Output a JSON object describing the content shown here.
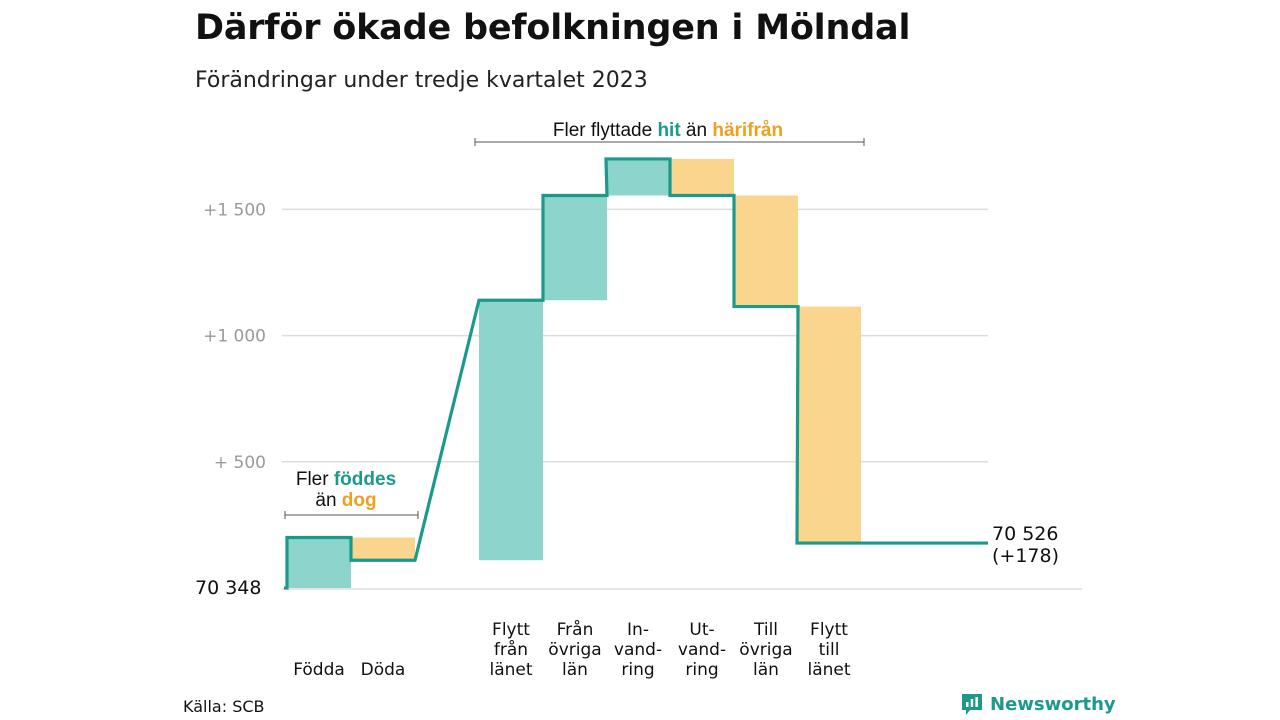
{
  "title": "Därför ökade befolkningen i Mölndal",
  "subtitle": "Förändringar under tredje kvartalet 2023",
  "source": "Källa: SCB",
  "brand": "Newsworthy",
  "colors": {
    "increase_fill": "#8dd5cc",
    "decrease_fill": "#f9d58e",
    "line": "#1b9a8c",
    "grid": "#dddddd",
    "positive_text": "#1b9a8c",
    "negative_text": "#f0a020"
  },
  "chart_data": {
    "type": "waterfall",
    "start_value_label": "70  348",
    "y_ticks": [
      {
        "value": 500,
        "label": "+  500"
      },
      {
        "value": 1000,
        "label": "+1  000"
      },
      {
        "value": 1500,
        "label": "+1  500"
      }
    ],
    "ylim": [
      0,
      1700
    ],
    "grid": true,
    "steps": [
      {
        "label": [
          "Födda"
        ],
        "change": 200
      },
      {
        "label": [
          "Döda"
        ],
        "change": -90
      },
      {
        "label": [
          "Flytt",
          "från",
          "länet"
        ],
        "change": 1030
      },
      {
        "label": [
          "Från",
          "övriga",
          "län"
        ],
        "change": 415
      },
      {
        "label": [
          "In-",
          "vand-",
          "ring"
        ],
        "change": 145
      },
      {
        "label": [
          "Ut-",
          "vand-",
          "ring"
        ],
        "change": -145
      },
      {
        "label": [
          "Till",
          "övriga",
          "län"
        ],
        "change": -440
      },
      {
        "label": [
          "Flytt",
          "till",
          "länet"
        ],
        "change": -937
      }
    ],
    "end_value_label": "70 526",
    "end_change_label": "(+178)",
    "annotations": {
      "births": {
        "line1_prefix": "Fler ",
        "line1_highlight": "föddes",
        "line2_prefix": "än ",
        "line2_highlight": "dog"
      },
      "migration": {
        "prefix": "Fler flyttade ",
        "highlight_pos": "hit",
        "middle": " än ",
        "highlight_neg": "härifrån"
      }
    }
  }
}
